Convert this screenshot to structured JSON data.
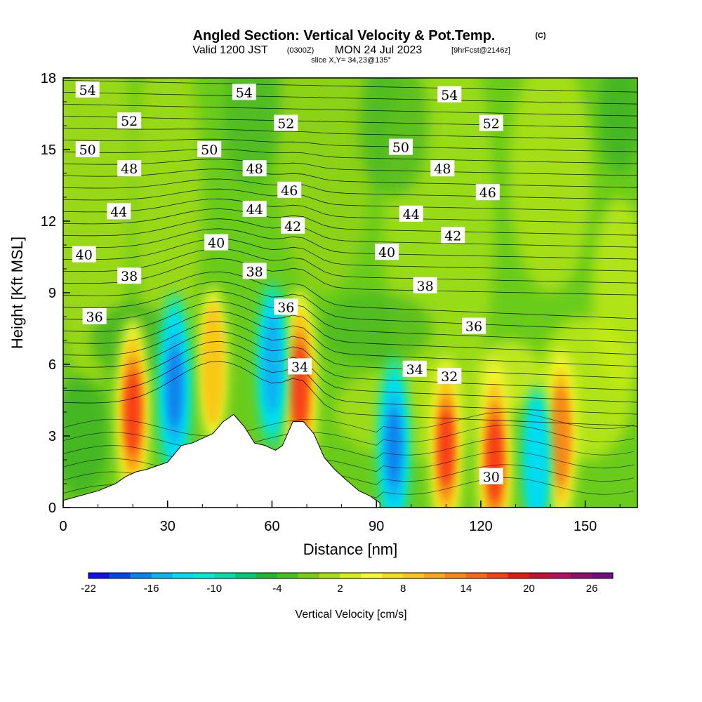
{
  "header": {
    "title": "Angled Section: Vertical Velocity & Pot.Temp.",
    "title_units": "(C)",
    "valid_prefix": "Valid 1200 JST",
    "valid_utc": "(0300Z)",
    "valid_date": "MON 24 Jul 2023",
    "forecast": "[9hrFcst@2146z]",
    "slice": "slice X,Y= 34,23@135°"
  },
  "chart_data": {
    "type": "heatmap",
    "title": "Angled Section: Vertical Velocity & Pot.Temp.",
    "xlabel": "Distance [nm]",
    "ylabel": "Height [Kft MSL]",
    "xlim": [
      0,
      165
    ],
    "ylim": [
      0,
      18
    ],
    "x_ticks": [
      0,
      30,
      60,
      90,
      120,
      150
    ],
    "x_tick_labels": [
      "0",
      "30",
      "60",
      "90",
      "120",
      "150"
    ],
    "y_ticks": [
      0,
      3,
      6,
      9,
      12,
      15,
      18
    ],
    "y_tick_labels": [
      "0",
      "3",
      "6",
      "9",
      "12",
      "15",
      "18"
    ],
    "background_color": "#6acc1a",
    "colorbar": {
      "label": "Vertical Velocity [cm/s]",
      "tick_labels": [
        "-22",
        "-16",
        "-10",
        "-4",
        "2",
        "8",
        "14",
        "20",
        "26"
      ],
      "colors": [
        "#1010f0",
        "#0a46f0",
        "#0a82f0",
        "#0ab4f0",
        "#00dcf0",
        "#00ecd8",
        "#00e0a8",
        "#00cc78",
        "#20b830",
        "#48c020",
        "#78d010",
        "#a8e010",
        "#d8f010",
        "#f8f830",
        "#f8e018",
        "#f8c818",
        "#f8a818",
        "#f88818",
        "#f86818",
        "#f84018",
        "#e81818",
        "#c81030",
        "#b81060",
        "#901070",
        "#701080"
      ]
    },
    "terrain_profile": {
      "x": [
        0,
        10,
        15,
        18,
        21,
        24,
        30,
        34,
        37,
        40,
        43,
        46,
        49,
        52,
        55,
        58,
        61,
        63,
        66,
        68,
        69,
        72,
        75,
        78,
        81,
        85,
        88,
        90,
        91
      ],
      "y": [
        0.3,
        0.7,
        1.0,
        1.3,
        1.5,
        1.6,
        1.9,
        2.6,
        2.7,
        2.9,
        3.1,
        3.6,
        3.9,
        3.4,
        2.7,
        2.6,
        2.4,
        2.6,
        3.6,
        3.6,
        3.6,
        3.1,
        2.1,
        1.6,
        1.2,
        0.7,
        0.5,
        0.3,
        0.2
      ]
    },
    "updraft_cores": [
      {
        "x": 20,
        "y": 4.0,
        "value": 20
      },
      {
        "x": 43,
        "y": 6.0,
        "value": 12
      },
      {
        "x": 68,
        "y": 5.0,
        "value": 22
      },
      {
        "x": 110,
        "y": 2.5,
        "value": 18
      },
      {
        "x": 124,
        "y": 2.0,
        "value": 22
      },
      {
        "x": 143,
        "y": 3.0,
        "value": 16
      }
    ],
    "downdraft_cores": [
      {
        "x": 32,
        "y": 5.0,
        "value": -20
      },
      {
        "x": 60,
        "y": 6.0,
        "value": -14
      },
      {
        "x": 95,
        "y": 2.5,
        "value": -18
      },
      {
        "x": 136,
        "y": 2.0,
        "value": -10
      }
    ],
    "theta_contour_labels": [
      {
        "text": "54",
        "x": 7,
        "y": 17.5
      },
      {
        "text": "54",
        "x": 52,
        "y": 17.4
      },
      {
        "text": "54",
        "x": 111,
        "y": 17.3
      },
      {
        "text": "52",
        "x": 19,
        "y": 16.2
      },
      {
        "text": "52",
        "x": 64,
        "y": 16.1
      },
      {
        "text": "52",
        "x": 123,
        "y": 16.1
      },
      {
        "text": "50",
        "x": 7,
        "y": 15.0
      },
      {
        "text": "50",
        "x": 42,
        "y": 15.0
      },
      {
        "text": "50",
        "x": 97,
        "y": 15.1
      },
      {
        "text": "48",
        "x": 19,
        "y": 14.2
      },
      {
        "text": "48",
        "x": 55,
        "y": 14.2
      },
      {
        "text": "48",
        "x": 109,
        "y": 14.2
      },
      {
        "text": "46",
        "x": 65,
        "y": 13.3
      },
      {
        "text": "46",
        "x": 122,
        "y": 13.2
      },
      {
        "text": "44",
        "x": 16,
        "y": 12.4
      },
      {
        "text": "44",
        "x": 55,
        "y": 12.5
      },
      {
        "text": "44",
        "x": 100,
        "y": 12.3
      },
      {
        "text": "42",
        "x": 66,
        "y": 11.8
      },
      {
        "text": "42",
        "x": 112,
        "y": 11.4
      },
      {
        "text": "40",
        "x": 6,
        "y": 10.6
      },
      {
        "text": "40",
        "x": 44,
        "y": 11.1
      },
      {
        "text": "40",
        "x": 93,
        "y": 10.7
      },
      {
        "text": "38",
        "x": 19,
        "y": 9.7
      },
      {
        "text": "38",
        "x": 55,
        "y": 9.9
      },
      {
        "text": "38",
        "x": 104,
        "y": 9.3
      },
      {
        "text": "36",
        "x": 9,
        "y": 8.0
      },
      {
        "text": "36",
        "x": 64,
        "y": 8.4
      },
      {
        "text": "36",
        "x": 118,
        "y": 7.6
      },
      {
        "text": "34",
        "x": 68,
        "y": 5.9
      },
      {
        "text": "34",
        "x": 101,
        "y": 5.8
      },
      {
        "text": "32",
        "x": 111,
        "y": 5.5
      },
      {
        "text": "30",
        "x": 123,
        "y": 1.3
      }
    ]
  }
}
